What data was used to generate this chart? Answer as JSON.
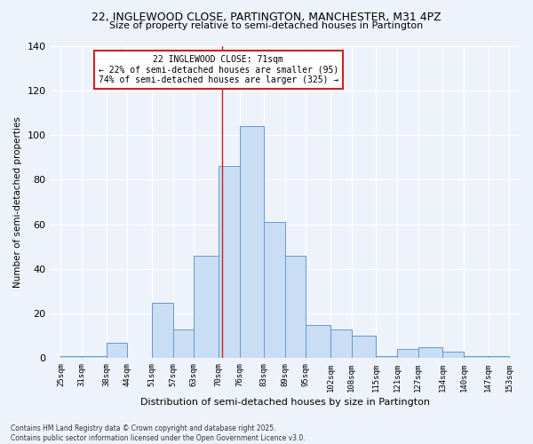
{
  "title1": "22, INGLEWOOD CLOSE, PARTINGTON, MANCHESTER, M31 4PZ",
  "title2": "Size of property relative to semi-detached houses in Partington",
  "xlabel": "Distribution of semi-detached houses by size in Partington",
  "ylabel": "Number of semi-detached properties",
  "footer1": "Contains HM Land Registry data © Crown copyright and database right 2025.",
  "footer2": "Contains public sector information licensed under the Open Government Licence v3.0.",
  "annotation_line1": "22 INGLEWOOD CLOSE: 71sqm",
  "annotation_line2": "← 22% of semi-detached houses are smaller (95)",
  "annotation_line3": "74% of semi-detached houses are larger (325) →",
  "property_size": 71,
  "bar_left_edges": [
    25,
    31,
    38,
    44,
    51,
    57,
    63,
    70,
    76,
    83,
    89,
    95,
    102,
    108,
    115,
    121,
    127,
    134,
    140,
    147
  ],
  "bar_heights": [
    1,
    1,
    7,
    0,
    25,
    13,
    46,
    86,
    104,
    61,
    46,
    15,
    13,
    10,
    1,
    4,
    5,
    3,
    1,
    1
  ],
  "bin_widths": [
    6,
    7,
    6,
    7,
    6,
    6,
    7,
    6,
    7,
    6,
    6,
    7,
    6,
    7,
    6,
    6,
    7,
    6,
    7,
    6
  ],
  "bar_color": "#c9ddf5",
  "bar_edge_color": "#6699cc",
  "vline_color": "#cc2222",
  "vline_x": 71,
  "bg_color": "#eef2fb",
  "annotation_box_color": "#cc2222",
  "ylim": [
    0,
    140
  ],
  "yticks": [
    0,
    20,
    40,
    60,
    80,
    100,
    120,
    140
  ],
  "tick_labels": [
    "25sqm",
    "31sqm",
    "38sqm",
    "44sqm",
    "51sqm",
    "57sqm",
    "63sqm",
    "70sqm",
    "76sqm",
    "83sqm",
    "89sqm",
    "95sqm",
    "102sqm",
    "108sqm",
    "115sqm",
    "121sqm",
    "127sqm",
    "134sqm",
    "140sqm",
    "147sqm",
    "153sqm"
  ],
  "tick_positions": [
    25,
    31,
    38,
    44,
    51,
    57,
    63,
    70,
    76,
    83,
    89,
    95,
    102,
    108,
    115,
    121,
    127,
    134,
    140,
    147,
    153
  ],
  "xlim": [
    22,
    156
  ]
}
